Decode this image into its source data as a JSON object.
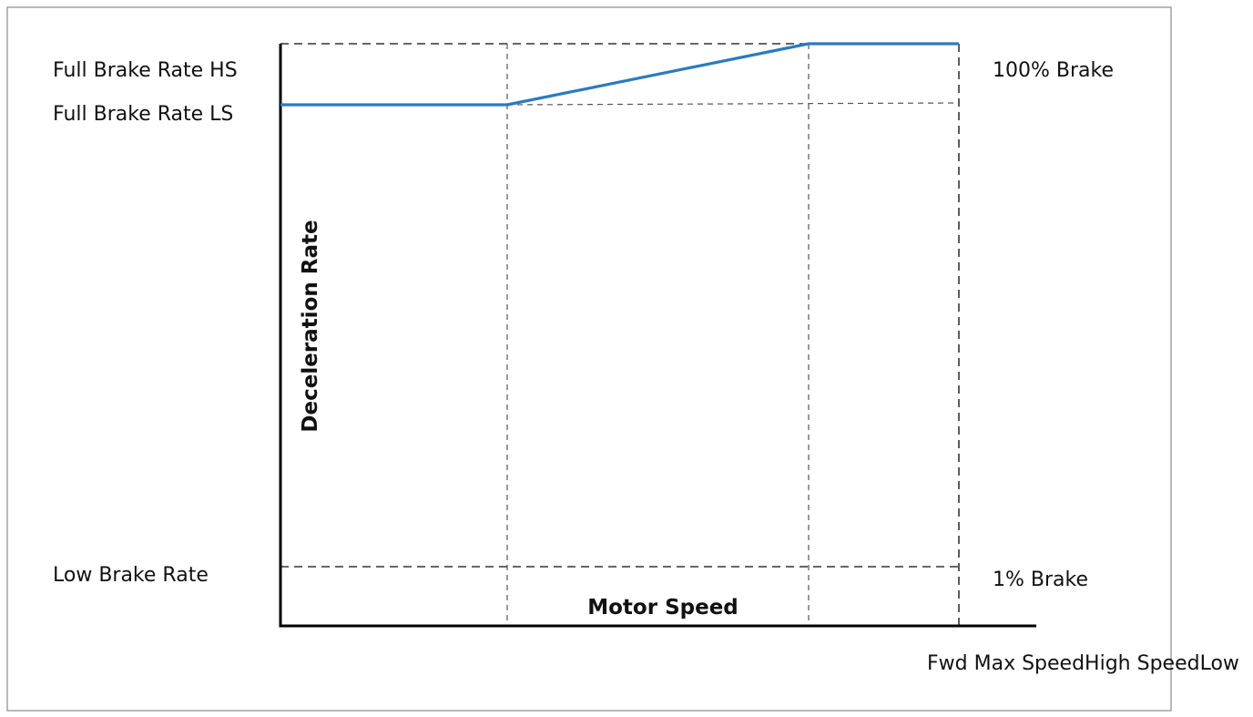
{
  "chart_data": {
    "type": "line",
    "title": "",
    "xlabel": "Motor Speed",
    "ylabel": "Deceleration Rate",
    "grid": false,
    "x_ticks": [
      "Fwd Max Speed",
      "High Speed",
      "Low"
    ],
    "x": [
      0,
      1,
      2,
      3
    ],
    "xlim": [
      0,
      3
    ],
    "ylim": [
      0,
      100
    ],
    "y_labels_left": [
      {
        "label": "Full Brake Rate HS",
        "value": 100
      },
      {
        "label": "Full Brake Rate LS",
        "value": 90
      },
      {
        "label": "Low Brake Rate",
        "value": 10
      }
    ],
    "y_labels_right": [
      {
        "label": "100%  Brake",
        "value": 100
      },
      {
        "label": "1%  Brake",
        "value": 10
      }
    ],
    "series": [
      {
        "values": [
          90,
          90,
          100,
          100
        ]
      }
    ],
    "colors": {
      "line": "#2a7bbf",
      "axis": "#000000",
      "guide": "#333333",
      "frame": "#8a8a8a"
    }
  }
}
